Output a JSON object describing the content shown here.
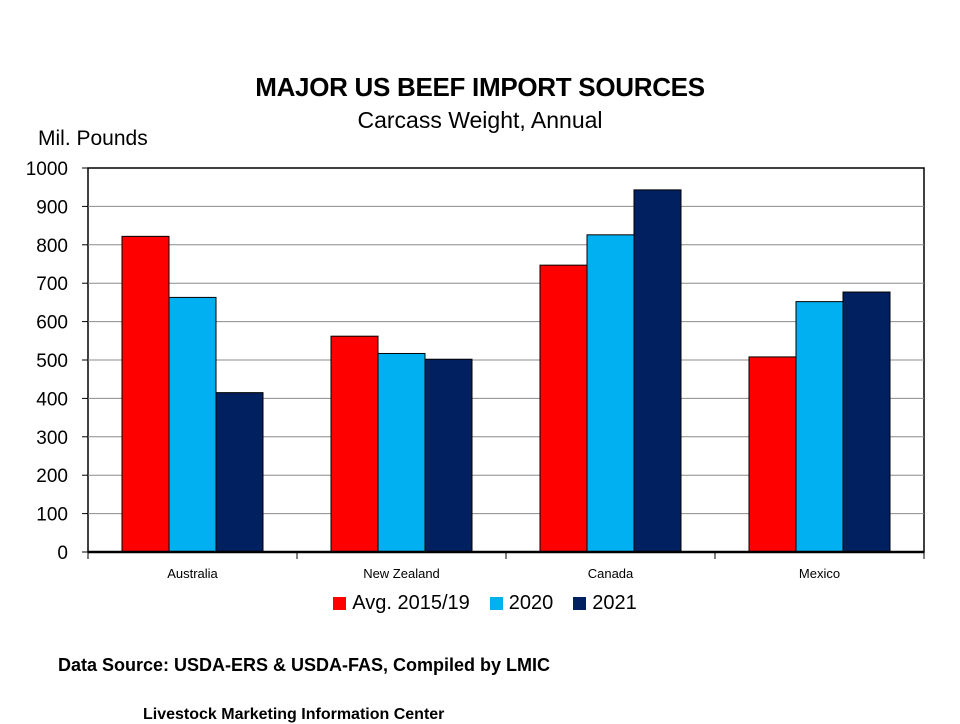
{
  "chart_data": {
    "type": "bar",
    "title": "MAJOR US BEEF IMPORT SOURCES",
    "subtitle": "Carcass Weight, Annual",
    "ylabel": "Mil. Pounds",
    "xlabel": "",
    "categories": [
      "Australia",
      "New Zealand",
      "Canada",
      "Mexico"
    ],
    "ylim": [
      0,
      1000
    ],
    "yticks": [
      0,
      100,
      200,
      300,
      400,
      500,
      600,
      700,
      800,
      900,
      1000
    ],
    "grid": true,
    "legend_position": "bottom",
    "series": [
      {
        "name": "Avg. 2015/19",
        "color": "#ff0000",
        "values": [
          822,
          562,
          747,
          508
        ]
      },
      {
        "name": "2020",
        "color": "#00b0f0",
        "values": [
          663,
          517,
          826,
          652
        ]
      },
      {
        "name": "2021",
        "color": "#002060",
        "values": [
          415,
          502,
          943,
          677
        ]
      }
    ]
  },
  "source": "Data Source:  USDA-ERS & USDA-FAS, Compiled by LMIC",
  "footer": "Livestock Marketing Information Center"
}
